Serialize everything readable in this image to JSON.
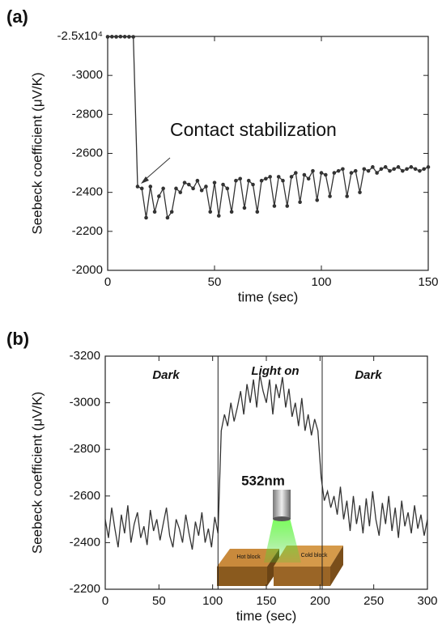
{
  "chart_data": [
    {
      "type": "line",
      "panel": "(a)",
      "xlabel": "time (sec)",
      "ylabel": "Seebeck coefficient (μV/K)",
      "color": "#333333",
      "markers": true,
      "xlim": [
        0,
        150
      ],
      "xticks": [
        0,
        50,
        100,
        150
      ],
      "ylim": [
        -2000,
        -25000
      ],
      "yticks": [
        -2000,
        -2200,
        -2400,
        -2600,
        -2800,
        -3000,
        {
          "value": -25000,
          "label": "-2.5x10⁴"
        }
      ],
      "annotations": [
        "Contact stabilization"
      ],
      "x": [
        0,
        2,
        4,
        6,
        8,
        10,
        12,
        14,
        16,
        18,
        20,
        22,
        24,
        26,
        28,
        30,
        32,
        34,
        36,
        38,
        40,
        42,
        44,
        46,
        48,
        50,
        52,
        54,
        56,
        58,
        60,
        62,
        64,
        66,
        68,
        70,
        72,
        74,
        76,
        78,
        80,
        82,
        84,
        86,
        88,
        90,
        92,
        94,
        96,
        98,
        100,
        102,
        104,
        106,
        108,
        110,
        112,
        114,
        116,
        118,
        120,
        122,
        124,
        126,
        128,
        130,
        132,
        134,
        136,
        138,
        140,
        142,
        144,
        146,
        148,
        150
      ],
      "values": [
        -24800,
        -24850,
        -24800,
        -24900,
        -24850,
        -24800,
        -24750,
        -2430,
        -2420,
        -2270,
        -2430,
        -2300,
        -2380,
        -2420,
        -2270,
        -2300,
        -2420,
        -2400,
        -2450,
        -2440,
        -2420,
        -2460,
        -2410,
        -2430,
        -2300,
        -2450,
        -2280,
        -2440,
        -2420,
        -2300,
        -2460,
        -2470,
        -2320,
        -2460,
        -2440,
        -2300,
        -2460,
        -2470,
        -2480,
        -2330,
        -2480,
        -2460,
        -2330,
        -2480,
        -2500,
        -2350,
        -2490,
        -2470,
        -2510,
        -2360,
        -2500,
        -2490,
        -2380,
        -2500,
        -2510,
        -2520,
        -2380,
        -2500,
        -2510,
        -2400,
        -2520,
        -2510,
        -2530,
        -2500,
        -2520,
        -2530,
        -2510,
        -2520,
        -2530,
        -2510,
        -2520,
        -2530,
        -2520,
        -2510,
        -2520,
        -2530
      ]
    },
    {
      "type": "line",
      "panel": "(b)",
      "xlabel": "time (sec)",
      "ylabel": "Seebeck coefficient (μV/K)",
      "color": "#333333",
      "markers": false,
      "xlim": [
        0,
        300
      ],
      "xticks": [
        0,
        50,
        100,
        150,
        200,
        250,
        300
      ],
      "ylim": [
        -2200,
        -3200
      ],
      "yticks": [
        -2200,
        -2400,
        -2600,
        -2800,
        -3000,
        -3200
      ],
      "vlines": [
        105,
        202
      ],
      "annotations": [
        "Dark",
        "Light on",
        "Dark",
        "532nm",
        "Hot block",
        "Cold block"
      ],
      "x": [
        0,
        3,
        6,
        9,
        12,
        15,
        18,
        21,
        24,
        27,
        30,
        33,
        36,
        39,
        42,
        45,
        48,
        51,
        54,
        57,
        60,
        63,
        66,
        69,
        72,
        75,
        78,
        81,
        84,
        87,
        90,
        93,
        96,
        99,
        102,
        105,
        108,
        111,
        114,
        117,
        120,
        123,
        126,
        129,
        132,
        135,
        138,
        141,
        144,
        147,
        150,
        153,
        156,
        159,
        162,
        165,
        168,
        171,
        174,
        177,
        180,
        183,
        186,
        189,
        192,
        195,
        198,
        201,
        204,
        207,
        210,
        213,
        216,
        219,
        222,
        225,
        228,
        231,
        234,
        237,
        240,
        243,
        246,
        249,
        252,
        255,
        258,
        261,
        264,
        267,
        270,
        273,
        276,
        279,
        282,
        285,
        288,
        291,
        294,
        297,
        300
      ],
      "values": [
        -2500,
        -2420,
        -2550,
        -2460,
        -2380,
        -2520,
        -2440,
        -2560,
        -2400,
        -2480,
        -2530,
        -2420,
        -2470,
        -2390,
        -2540,
        -2450,
        -2500,
        -2410,
        -2480,
        -2550,
        -2430,
        -2380,
        -2500,
        -2460,
        -2400,
        -2520,
        -2440,
        -2370,
        -2490,
        -2430,
        -2530,
        -2400,
        -2460,
        -2380,
        -2510,
        -2440,
        -2880,
        -2950,
        -2900,
        -3000,
        -2920,
        -2980,
        -3050,
        -2950,
        -3080,
        -3000,
        -3100,
        -2980,
        -3120,
        -3050,
        -3000,
        -3100,
        -2950,
        -3080,
        -3020,
        -3110,
        -2980,
        -3060,
        -2940,
        -3000,
        -2900,
        -3020,
        -2880,
        -2950,
        -2860,
        -2930,
        -2880,
        -2680,
        -2580,
        -2620,
        -2550,
        -2600,
        -2520,
        -2640,
        -2500,
        -2580,
        -2450,
        -2600,
        -2480,
        -2560,
        -2440,
        -2590,
        -2470,
        -2620,
        -2500,
        -2430,
        -2570,
        -2480,
        -2600,
        -2450,
        -2550,
        -2420,
        -2580,
        -2470,
        -2530,
        -2440,
        -2560,
        -2460,
        -2520,
        -2430,
        -2500
      ]
    }
  ]
}
